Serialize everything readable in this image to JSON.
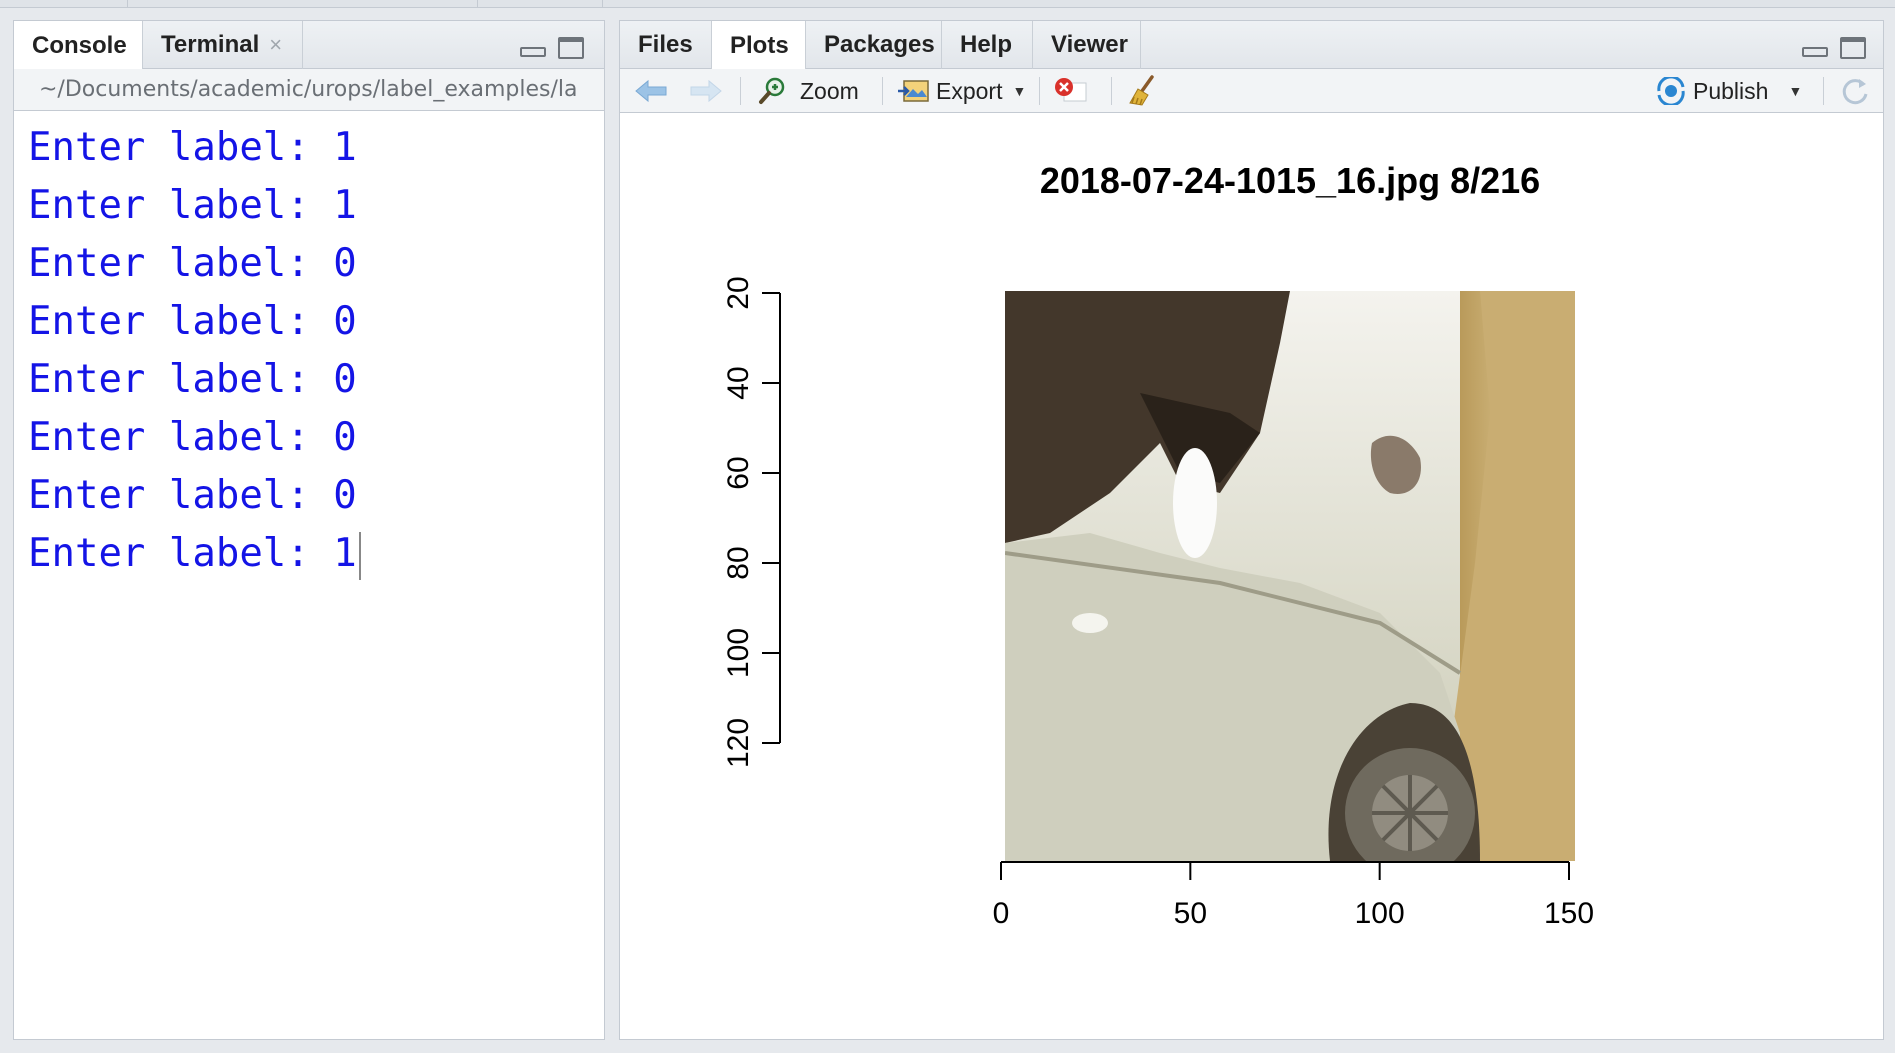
{
  "console_pane": {
    "tabs": [
      {
        "label": "Console",
        "active": true
      },
      {
        "label": "Terminal",
        "active": false,
        "close": "×"
      }
    ],
    "path": "~/Documents/academic/urops/label_examples/la",
    "lines": [
      "Enter label: 1",
      "Enter label: 1",
      "Enter label: 0",
      "Enter label: 0",
      "Enter label: 0",
      "Enter label: 0",
      "Enter label: 0",
      "Enter label: 1"
    ]
  },
  "plots_pane": {
    "tabs": [
      {
        "label": "Files",
        "active": false
      },
      {
        "label": "Plots",
        "active": true
      },
      {
        "label": "Packages",
        "active": false
      },
      {
        "label": "Help",
        "active": false
      },
      {
        "label": "Viewer",
        "active": false
      }
    ],
    "toolbar": {
      "zoom_label": "Zoom",
      "export_label": "Export",
      "publish_label": "Publish"
    }
  },
  "colors": {
    "console_text": "#1414e6",
    "publish_icon": "#2a86d1",
    "remove_icon": "#d9312b"
  },
  "chart_data": {
    "type": "image",
    "title": "2018-07-24-1015_16.jpg 8/216",
    "x_ticks": [
      0,
      50,
      100,
      150
    ],
    "y_ticks": [
      20,
      40,
      60,
      80,
      100,
      120
    ],
    "xlim": [
      0,
      150
    ],
    "ylim": [
      0,
      128
    ],
    "image_extent": {
      "x": [
        1,
        128
      ],
      "y": [
        1,
        128
      ]
    },
    "image_description_icon": "car-photo"
  }
}
